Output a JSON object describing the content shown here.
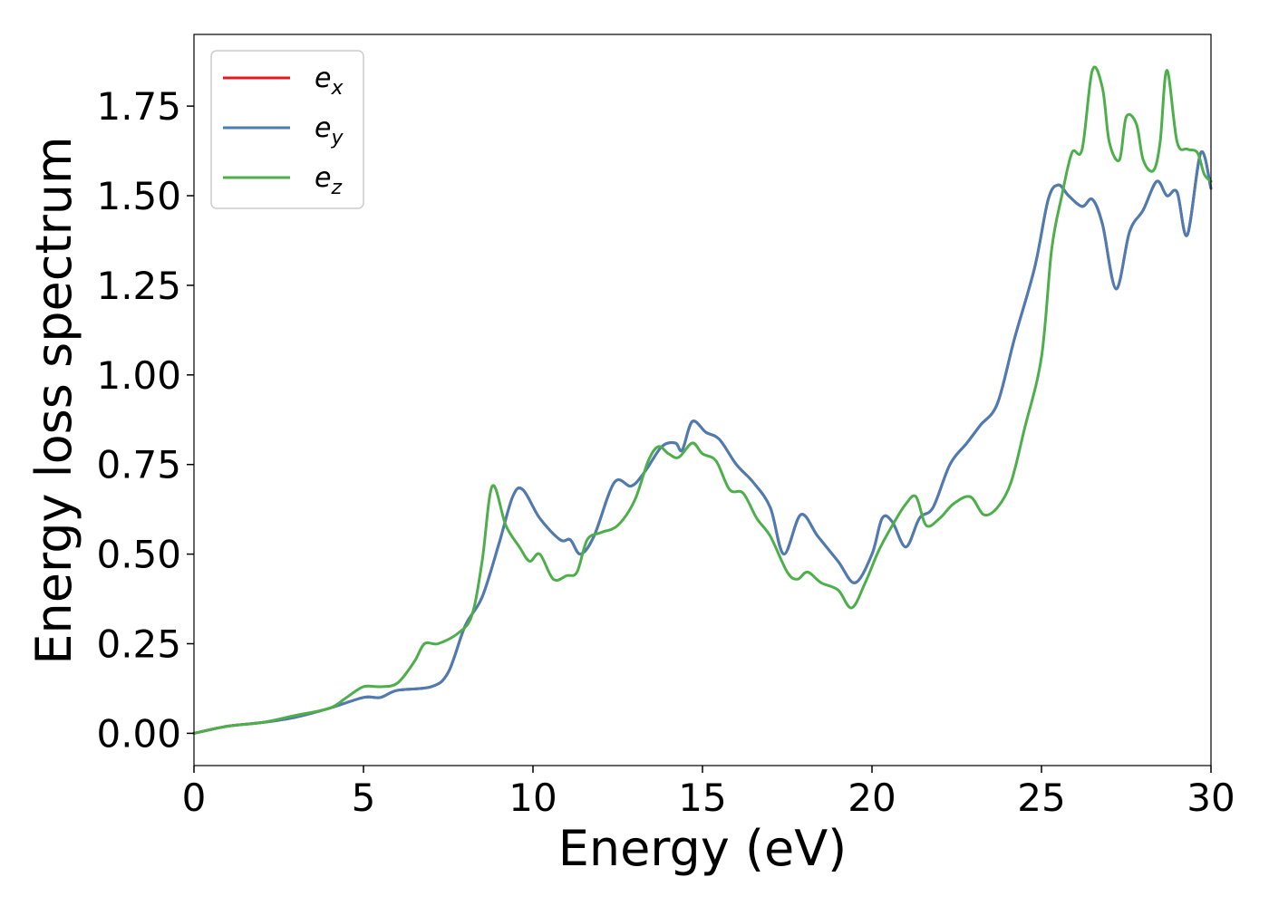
{
  "chart_data": {
    "type": "line",
    "title": "",
    "xlabel": "Energy (eV)",
    "ylabel": "Energy loss spectrum",
    "xlim": [
      0,
      30
    ],
    "ylim": [
      -0.09,
      1.95
    ],
    "xticks": [
      0,
      5,
      10,
      15,
      20,
      25,
      30
    ],
    "xtick_labels": [
      "0",
      "5",
      "10",
      "15",
      "20",
      "25",
      "30"
    ],
    "yticks": [
      0,
      0.25,
      0.5,
      0.75,
      1.0,
      1.25,
      1.5,
      1.75
    ],
    "ytick_labels": [
      "0.00",
      "0.25",
      "0.50",
      "0.75",
      "1.00",
      "1.25",
      "1.50",
      "1.75"
    ],
    "grid": false,
    "legend_position": "top-left",
    "series": [
      {
        "name": "e_x",
        "legend_main": "e",
        "legend_sub": "x",
        "color": "#e41a1c",
        "x": [
          0,
          1,
          2,
          3,
          4,
          5,
          5.5,
          6,
          7,
          7.5,
          8,
          8.5,
          9,
          9.4,
          9.7,
          10.2,
          10.8,
          11.1,
          11.4,
          11.8,
          12.4,
          12.9,
          13.3,
          13.8,
          14.2,
          14.4,
          14.7,
          15.1,
          15.5,
          16.0,
          16.5,
          17.0,
          17.4,
          17.9,
          18.4,
          19.0,
          19.5,
          20.0,
          20.3,
          20.6,
          21.0,
          21.4,
          21.8,
          22.3,
          22.8,
          23.2,
          23.7,
          24.2,
          24.8,
          25.2,
          25.5,
          25.8,
          26.2,
          26.5,
          26.8,
          27.2,
          27.6,
          28.0,
          28.4,
          28.7,
          29.0,
          29.3,
          29.7,
          30.0
        ],
        "y": [
          0.0,
          0.02,
          0.03,
          0.045,
          0.07,
          0.1,
          0.1,
          0.12,
          0.13,
          0.17,
          0.3,
          0.38,
          0.53,
          0.66,
          0.68,
          0.6,
          0.54,
          0.54,
          0.5,
          0.55,
          0.7,
          0.69,
          0.73,
          0.8,
          0.81,
          0.79,
          0.87,
          0.84,
          0.82,
          0.75,
          0.7,
          0.63,
          0.5,
          0.61,
          0.55,
          0.48,
          0.42,
          0.5,
          0.6,
          0.59,
          0.52,
          0.6,
          0.63,
          0.75,
          0.81,
          0.86,
          0.92,
          1.1,
          1.3,
          1.49,
          1.53,
          1.5,
          1.47,
          1.49,
          1.42,
          1.24,
          1.4,
          1.46,
          1.54,
          1.5,
          1.51,
          1.39,
          1.62,
          1.52
        ]
      },
      {
        "name": "e_y",
        "legend_main": "e",
        "legend_sub": "y",
        "color": "#4a7db4",
        "x": [
          0,
          1,
          2,
          3,
          4,
          5,
          5.5,
          6,
          7,
          7.5,
          8,
          8.5,
          9,
          9.4,
          9.7,
          10.2,
          10.8,
          11.1,
          11.4,
          11.8,
          12.4,
          12.9,
          13.3,
          13.8,
          14.2,
          14.4,
          14.7,
          15.1,
          15.5,
          16.0,
          16.5,
          17.0,
          17.4,
          17.9,
          18.4,
          19.0,
          19.5,
          20.0,
          20.3,
          20.6,
          21.0,
          21.4,
          21.8,
          22.3,
          22.8,
          23.2,
          23.7,
          24.2,
          24.8,
          25.2,
          25.5,
          25.8,
          26.2,
          26.5,
          26.8,
          27.2,
          27.6,
          28.0,
          28.4,
          28.7,
          29.0,
          29.3,
          29.7,
          30.0
        ],
        "y": [
          0.0,
          0.02,
          0.03,
          0.045,
          0.07,
          0.1,
          0.1,
          0.12,
          0.13,
          0.17,
          0.3,
          0.38,
          0.53,
          0.66,
          0.68,
          0.6,
          0.54,
          0.54,
          0.5,
          0.55,
          0.7,
          0.69,
          0.73,
          0.8,
          0.81,
          0.79,
          0.87,
          0.84,
          0.82,
          0.75,
          0.7,
          0.63,
          0.5,
          0.61,
          0.55,
          0.48,
          0.42,
          0.5,
          0.6,
          0.59,
          0.52,
          0.6,
          0.63,
          0.75,
          0.81,
          0.86,
          0.92,
          1.1,
          1.3,
          1.49,
          1.53,
          1.5,
          1.47,
          1.49,
          1.42,
          1.24,
          1.4,
          1.46,
          1.54,
          1.5,
          1.51,
          1.39,
          1.62,
          1.52
        ]
      },
      {
        "name": "e_z",
        "legend_main": "e",
        "legend_sub": "z",
        "color": "#4daf4a",
        "x": [
          0,
          1,
          2,
          3,
          4,
          4.5,
          5,
          5.5,
          6,
          6.5,
          6.8,
          7.2,
          7.8,
          8.2,
          8.5,
          8.8,
          9.2,
          9.6,
          9.9,
          10.2,
          10.6,
          11.0,
          11.3,
          11.6,
          12.0,
          12.5,
          13.0,
          13.4,
          13.7,
          14.0,
          14.3,
          14.7,
          15.0,
          15.4,
          15.8,
          16.2,
          16.6,
          17.0,
          17.5,
          17.8,
          18.1,
          18.5,
          19.0,
          19.4,
          19.8,
          20.2,
          20.6,
          21.0,
          21.3,
          21.6,
          22.0,
          22.4,
          22.9,
          23.3,
          23.7,
          24.1,
          24.5,
          25.0,
          25.3,
          25.6,
          25.9,
          26.2,
          26.5,
          26.8,
          27.0,
          27.3,
          27.5,
          27.8,
          28.0,
          28.3,
          28.5,
          28.7,
          29.0,
          29.3,
          29.6,
          29.8,
          30.0
        ],
        "y": [
          0.0,
          0.02,
          0.03,
          0.05,
          0.07,
          0.1,
          0.13,
          0.13,
          0.14,
          0.2,
          0.25,
          0.25,
          0.28,
          0.33,
          0.48,
          0.69,
          0.58,
          0.52,
          0.48,
          0.5,
          0.43,
          0.44,
          0.45,
          0.54,
          0.56,
          0.58,
          0.65,
          0.76,
          0.8,
          0.78,
          0.77,
          0.81,
          0.78,
          0.76,
          0.68,
          0.67,
          0.6,
          0.55,
          0.45,
          0.43,
          0.45,
          0.42,
          0.4,
          0.35,
          0.42,
          0.51,
          0.58,
          0.64,
          0.66,
          0.58,
          0.6,
          0.64,
          0.66,
          0.61,
          0.63,
          0.7,
          0.85,
          1.05,
          1.35,
          1.5,
          1.62,
          1.63,
          1.85,
          1.8,
          1.65,
          1.6,
          1.72,
          1.7,
          1.6,
          1.57,
          1.65,
          1.85,
          1.65,
          1.63,
          1.62,
          1.56,
          1.54
        ]
      }
    ]
  }
}
